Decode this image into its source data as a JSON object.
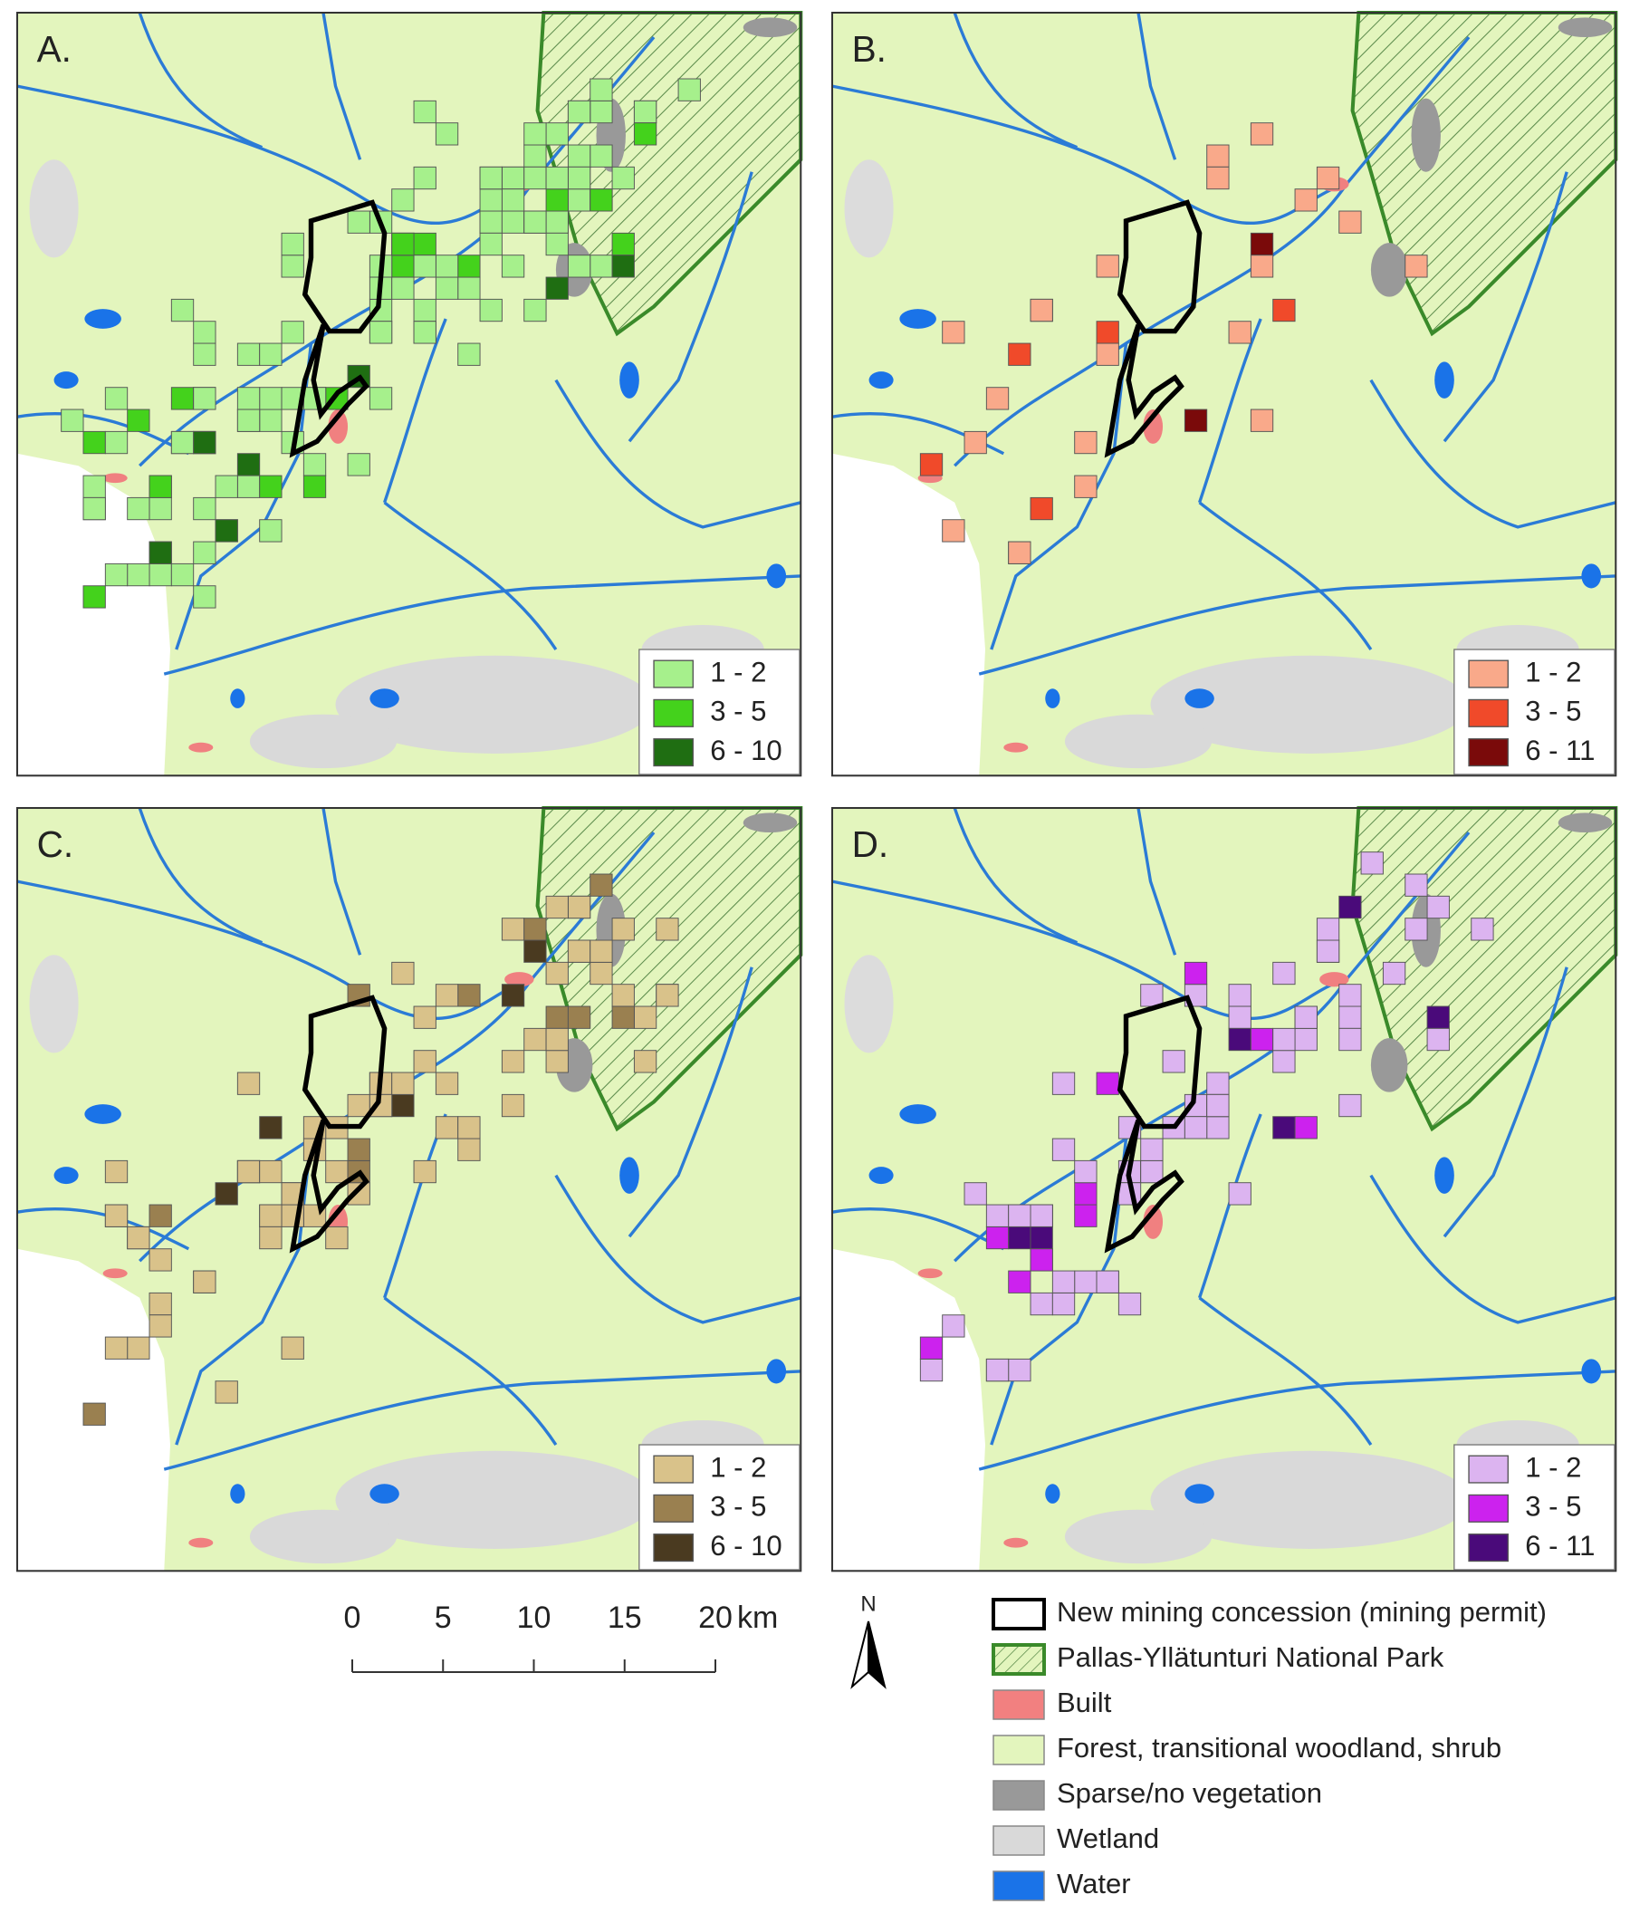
{
  "panels": [
    {
      "label": "A.",
      "legend": [
        {
          "label": "1 - 2",
          "color": "#a6f08c"
        },
        {
          "label": "3 - 5",
          "color": "#44d21c"
        },
        {
          "label": "6 - 10",
          "color": "#1f6e12"
        }
      ]
    },
    {
      "label": "B.",
      "legend": [
        {
          "label": "1 - 2",
          "color": "#f9a98a"
        },
        {
          "label": "3 - 5",
          "color": "#f04a2a"
        },
        {
          "label": "6 - 11",
          "color": "#7a0a0a"
        }
      ]
    },
    {
      "label": "C.",
      "legend": [
        {
          "label": "1 - 2",
          "color": "#d9c28a"
        },
        {
          "label": "3 - 5",
          "color": "#9a8050"
        },
        {
          "label": "6 - 10",
          "color": "#4a3a20"
        }
      ]
    },
    {
      "label": "D.",
      "legend": [
        {
          "label": "1 - 2",
          "color": "#dcb4f0"
        },
        {
          "label": "3 - 5",
          "color": "#cc22ee"
        },
        {
          "label": "6 - 11",
          "color": "#4a0a7a"
        }
      ]
    }
  ],
  "scale_bar": {
    "ticks": [
      0,
      5,
      10,
      15,
      20
    ],
    "unit": "km"
  },
  "north": "N",
  "legend": [
    {
      "label": "New mining concession (mining permit)",
      "color": "#ffffff",
      "outline": "#000000"
    },
    {
      "label": "Pallas-Yllätunturi National Park",
      "color": "#e3f5bd",
      "outline": "#3a8a2a"
    },
    {
      "label": "Built",
      "color": "#f28080"
    },
    {
      "label": "Forest, transitional woodland, shrub",
      "color": "#e3f5bd"
    },
    {
      "label": "Sparse/no vegetation",
      "color": "#999999"
    },
    {
      "label": "Wetland",
      "color": "#d9d9d9"
    },
    {
      "label": "Water",
      "color": "#1a73e8"
    }
  ]
}
